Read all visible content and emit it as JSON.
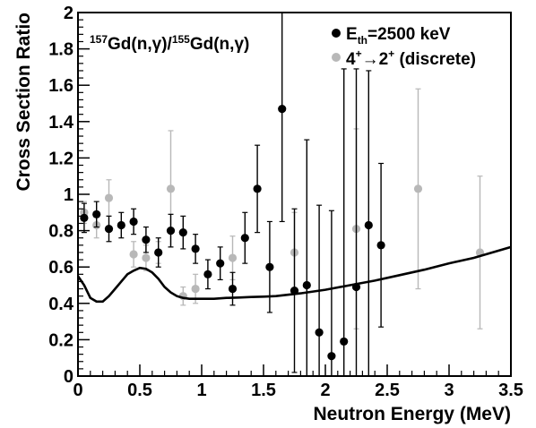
{
  "chart_data": {
    "type": "scatter",
    "title_parts": {
      "a_sup": "157",
      "a_body": "Gd(n,γ)/",
      "b_sup": "155",
      "b_body": "Gd(n,γ)"
    },
    "xlabel": "Neutron Energy (MeV)",
    "ylabel": "Cross Section Ratio",
    "xlim": [
      0,
      3.5
    ],
    "ylim": [
      0,
      2.0
    ],
    "x_ticks": [
      "0",
      "0.5",
      "1",
      "1.5",
      "2",
      "2.5",
      "3",
      "3.5"
    ],
    "x_tick_values": [
      0,
      0.5,
      1,
      1.5,
      2,
      2.5,
      3,
      3.5
    ],
    "y_ticks": [
      "0",
      "0.2",
      "0.4",
      "0.6",
      "0.8",
      "1",
      "1.2",
      "1.4",
      "1.6",
      "1.8",
      "2"
    ],
    "y_tick_values": [
      0,
      0.2,
      0.4,
      0.6,
      0.8,
      1.0,
      1.2,
      1.4,
      1.6,
      1.8,
      2.0
    ],
    "grid": false,
    "legend_position": "top-right",
    "legend": [
      {
        "label_main": "E",
        "label_sub": "th",
        "label_rest": "=2500 keV",
        "color": "#000000"
      },
      {
        "label_main": "4",
        "label_sup1": "+",
        "label_arrow": "→",
        "label_mid": "2",
        "label_sup2": "+",
        "label_rest": " (discrete)",
        "color": "#b8b8b8"
      }
    ],
    "series": [
      {
        "label": "E_th=2500 keV",
        "color": "#000000",
        "points": [
          {
            "x": 0.05,
            "y": 0.87,
            "err": 0.08
          },
          {
            "x": 0.15,
            "y": 0.89,
            "err": 0.07
          },
          {
            "x": 0.25,
            "y": 0.81,
            "err": 0.07
          },
          {
            "x": 0.35,
            "y": 0.83,
            "err": 0.07
          },
          {
            "x": 0.45,
            "y": 0.85,
            "err": 0.07
          },
          {
            "x": 0.55,
            "y": 0.75,
            "err": 0.07
          },
          {
            "x": 0.65,
            "y": 0.68,
            "err": 0.08
          },
          {
            "x": 0.75,
            "y": 0.8,
            "err": 0.09
          },
          {
            "x": 0.85,
            "y": 0.79,
            "err": 0.09
          },
          {
            "x": 0.95,
            "y": 0.7,
            "err": 0.08
          },
          {
            "x": 1.05,
            "y": 0.56,
            "err": 0.08
          },
          {
            "x": 1.15,
            "y": 0.62,
            "err": 0.09
          },
          {
            "x": 1.25,
            "y": 0.48,
            "err": 0.09
          },
          {
            "x": 1.35,
            "y": 0.76,
            "err": 0.14
          },
          {
            "x": 1.45,
            "y": 1.03,
            "err": 0.24
          },
          {
            "x": 1.55,
            "y": 0.6,
            "err": 0.25
          },
          {
            "x": 1.65,
            "y": 1.47,
            "err": 0.62
          },
          {
            "x": 1.75,
            "y": 0.47,
            "err": 0.45
          },
          {
            "x": 1.85,
            "y": 0.5,
            "err": 0.8
          },
          {
            "x": 1.95,
            "y": 0.24,
            "err": 0.7
          },
          {
            "x": 2.05,
            "y": 0.11,
            "err": 0.8
          },
          {
            "x": 2.15,
            "y": 0.19,
            "err": 1.5
          },
          {
            "x": 2.25,
            "y": 0.49,
            "err": 1.2
          },
          {
            "x": 2.35,
            "y": 0.83,
            "err": 0.85
          },
          {
            "x": 2.45,
            "y": 0.72,
            "err": 0.45
          }
        ]
      },
      {
        "label": "4+→2+ (discrete)",
        "color": "#b8b8b8",
        "points": [
          {
            "x": 0.05,
            "y": 0.9,
            "err": 0.06
          },
          {
            "x": 0.15,
            "y": 0.83,
            "err": 0.07
          },
          {
            "x": 0.25,
            "y": 0.98,
            "err": 0.1
          },
          {
            "x": 0.45,
            "y": 0.67,
            "err": 0.07
          },
          {
            "x": 0.55,
            "y": 0.65,
            "err": 0.07
          },
          {
            "x": 0.65,
            "y": 0.68,
            "err": 0.06
          },
          {
            "x": 0.75,
            "y": 1.03,
            "err": 0.32
          },
          {
            "x": 0.85,
            "y": 0.44,
            "err": 0.05
          },
          {
            "x": 0.95,
            "y": 0.48,
            "err": 0.08
          },
          {
            "x": 1.25,
            "y": 0.65,
            "err": 0.12
          },
          {
            "x": 1.75,
            "y": 0.68,
            "err": 0.22
          },
          {
            "x": 2.25,
            "y": 0.81,
            "err": 0.55
          },
          {
            "x": 2.75,
            "y": 1.03,
            "err": 0.55
          },
          {
            "x": 3.25,
            "y": 0.68,
            "err": 0.42
          }
        ]
      },
      {
        "label": "curve",
        "type": "line",
        "color": "#000000",
        "x": [
          0.0,
          0.05,
          0.1,
          0.15,
          0.2,
          0.25,
          0.3,
          0.35,
          0.4,
          0.45,
          0.5,
          0.55,
          0.6,
          0.65,
          0.7,
          0.75,
          0.8,
          0.85,
          0.9,
          0.95,
          1.0,
          1.1,
          1.2,
          1.3,
          1.4,
          1.5,
          1.6,
          1.8,
          2.0,
          2.2,
          2.4,
          2.6,
          2.8,
          3.0,
          3.2,
          3.5
        ],
        "y": [
          0.55,
          0.5,
          0.43,
          0.41,
          0.41,
          0.44,
          0.48,
          0.52,
          0.56,
          0.58,
          0.595,
          0.59,
          0.57,
          0.535,
          0.49,
          0.46,
          0.44,
          0.43,
          0.425,
          0.425,
          0.425,
          0.425,
          0.43,
          0.432,
          0.435,
          0.437,
          0.44,
          0.455,
          0.475,
          0.5,
          0.525,
          0.555,
          0.585,
          0.62,
          0.65,
          0.71
        ]
      }
    ]
  }
}
